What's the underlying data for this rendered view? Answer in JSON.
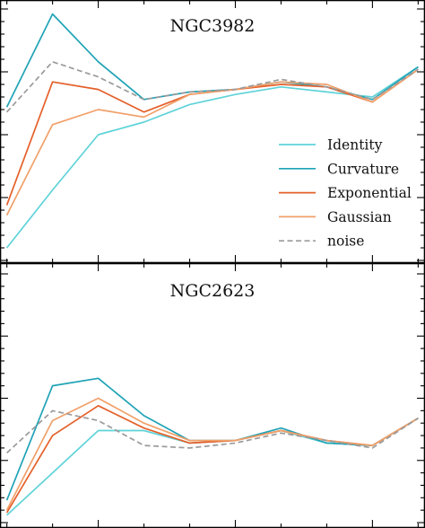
{
  "chart_data": {
    "type": "line",
    "x": [
      1,
      2,
      3,
      4,
      5,
      6,
      7,
      8,
      9,
      10
    ],
    "xlim": [
      0.85,
      10.15
    ],
    "colors": {
      "Identity": "#5fd3d9",
      "Curvature": "#1fa3b6",
      "Exponential": "#e4602a",
      "Gaussian": "#f0a06a",
      "noise": "#9a9a9a"
    },
    "legend": {
      "placement": "right",
      "entries": [
        {
          "label": "Identity",
          "key": "Identity",
          "dash": false
        },
        {
          "label": "Curvature",
          "key": "Curvature",
          "dash": false
        },
        {
          "label": "Exponential",
          "key": "Exponential",
          "dash": false
        },
        {
          "label": "Gaussian",
          "key": "Gaussian",
          "dash": false
        },
        {
          "label": "noise",
          "key": "noise",
          "dash": true
        }
      ]
    },
    "panels": [
      {
        "title": "NGC3982",
        "ylim": [
          0,
          1
        ],
        "series": [
          {
            "key": "Identity",
            "values": [
              0.05,
              0.28,
              0.5,
              0.55,
              0.62,
              0.66,
              0.69,
              0.67,
              0.65,
              0.77
            ]
          },
          {
            "key": "Curvature",
            "values": [
              0.61,
              0.98,
              0.79,
              0.64,
              0.67,
              0.68,
              0.71,
              0.69,
              0.64,
              0.77
            ]
          },
          {
            "key": "Exponential",
            "values": [
              0.22,
              0.71,
              0.68,
              0.59,
              0.66,
              0.68,
              0.7,
              0.69,
              0.63,
              0.76
            ]
          },
          {
            "key": "Gaussian",
            "values": [
              0.18,
              0.54,
              0.6,
              0.57,
              0.66,
              0.68,
              0.71,
              0.7,
              0.63,
              0.76
            ]
          },
          {
            "key": "noise",
            "values": [
              0.59,
              0.79,
              0.73,
              0.64,
              0.67,
              0.68,
              0.72,
              0.69,
              0.64,
              0.76
            ],
            "dash": true
          }
        ]
      },
      {
        "title": "NGC2623",
        "ylim": [
          0,
          1
        ],
        "series": [
          {
            "key": "Identity",
            "values": [
              0.03,
              0.2,
              0.37,
              0.37,
              0.32,
              0.33,
              0.37,
              0.32,
              0.31,
              0.42
            ]
          },
          {
            "key": "Curvature",
            "values": [
              0.09,
              0.55,
              0.58,
              0.43,
              0.33,
              0.33,
              0.38,
              0.32,
              0.31,
              0.42
            ]
          },
          {
            "key": "Exponential",
            "values": [
              0.04,
              0.35,
              0.47,
              0.38,
              0.32,
              0.33,
              0.37,
              0.33,
              0.31,
              0.42
            ]
          },
          {
            "key": "Gaussian",
            "values": [
              0.05,
              0.41,
              0.5,
              0.4,
              0.33,
              0.33,
              0.37,
              0.33,
              0.31,
              0.42
            ]
          },
          {
            "key": "noise",
            "values": [
              0.28,
              0.45,
              0.41,
              0.31,
              0.3,
              0.32,
              0.36,
              0.33,
              0.3,
              0.42
            ],
            "dash": true
          }
        ]
      }
    ]
  }
}
